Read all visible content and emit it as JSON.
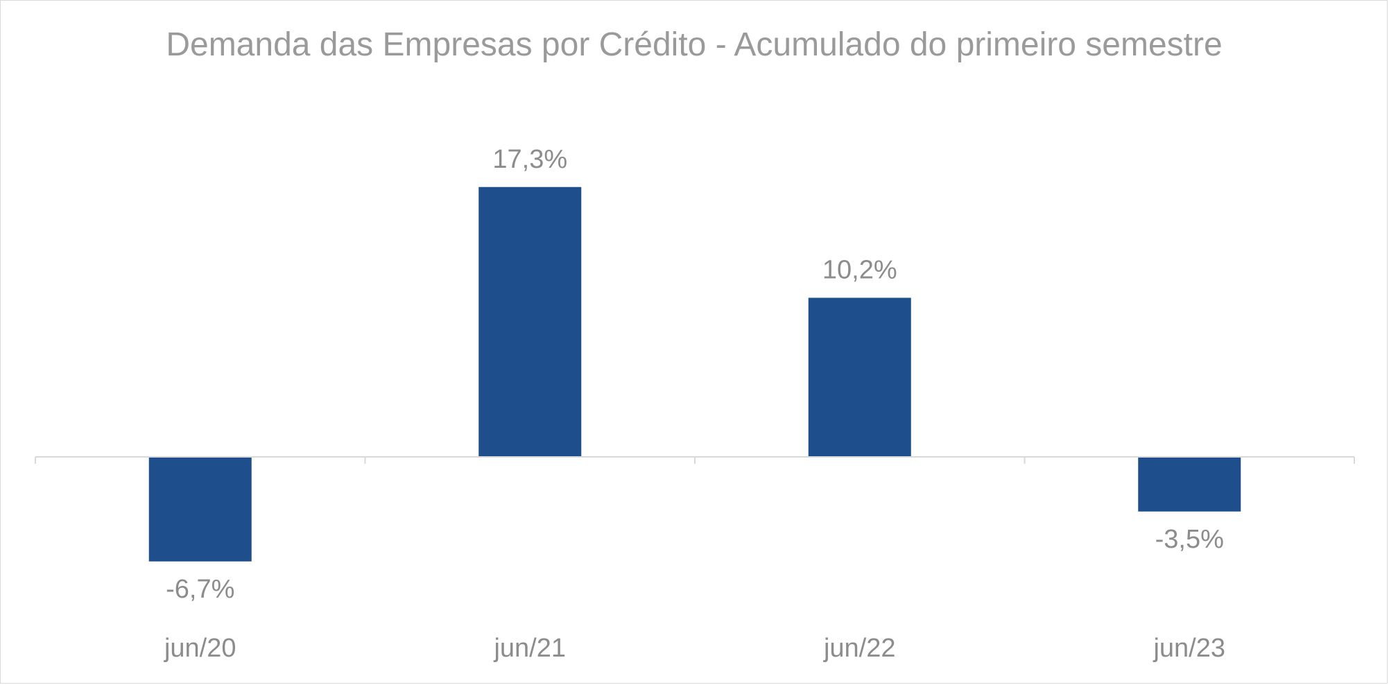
{
  "chart_data": {
    "type": "bar",
    "title": "Demanda das Empresas por Crédito - Acumulado do primeiro semestre",
    "categories": [
      "jun/20",
      "jun/21",
      "jun/22",
      "jun/23"
    ],
    "values": [
      -6.7,
      17.3,
      10.2,
      -3.5
    ],
    "data_labels": [
      "-6,7%",
      "17,3%",
      "10,2%",
      "-3,5%"
    ],
    "unit": "%",
    "ylim": [
      -11,
      21
    ],
    "bar_color": "#1f4e8c",
    "axis_color": "#d9d9d9",
    "grid": false,
    "legend": "none"
  }
}
